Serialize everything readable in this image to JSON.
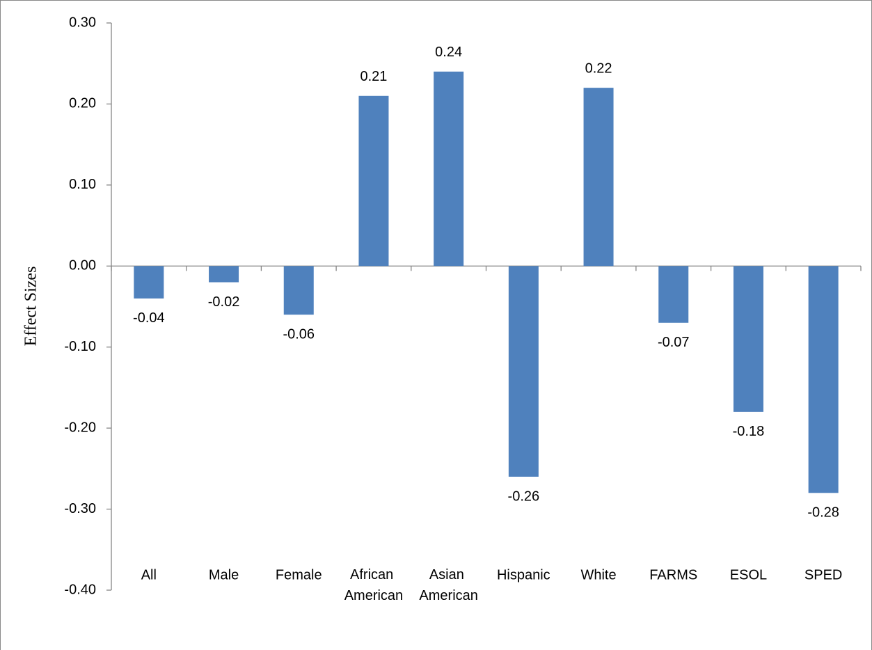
{
  "chart_data": {
    "type": "bar",
    "y_label": "Effect Sizes",
    "categories": [
      "All",
      "Male",
      "Female",
      "African American",
      "Asian American",
      "Hispanic",
      "White",
      "FARMS",
      "ESOL",
      "SPED"
    ],
    "values": [
      -0.04,
      -0.02,
      -0.06,
      0.21,
      0.24,
      -0.26,
      0.22,
      -0.07,
      -0.18,
      -0.28
    ],
    "color": "#4f81bd",
    "ylim": [
      -0.4,
      0.3
    ],
    "yticks": [
      {
        "value": 0.3,
        "label": "0.30"
      },
      {
        "value": 0.2,
        "label": "0.20"
      },
      {
        "value": 0.1,
        "label": "0.10"
      },
      {
        "value": 0,
        "label": "0.00"
      },
      {
        "value": -0.1,
        "label": "-0.10"
      },
      {
        "value": -0.2,
        "label": "-0.20"
      },
      {
        "value": -0.3,
        "label": "-0.30"
      },
      {
        "value": -0.4,
        "label": "-0.40"
      }
    ],
    "grid": false
  }
}
